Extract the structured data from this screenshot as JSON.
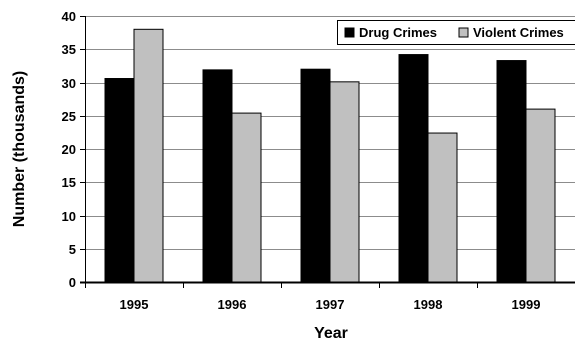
{
  "chart_data": {
    "type": "bar",
    "title": "",
    "xlabel": "Year",
    "ylabel": "Number (thousands)",
    "categories": [
      "1995",
      "1996",
      "1997",
      "1998",
      "1999"
    ],
    "ylim": [
      0,
      40
    ],
    "yticks": [
      0,
      5,
      10,
      15,
      20,
      25,
      30,
      35,
      40
    ],
    "grid": true,
    "legend_position": "top-right",
    "series": [
      {
        "name": "Drug Crimes",
        "color": "#000000",
        "values": [
          30.6,
          31.9,
          32.0,
          34.2,
          33.3
        ]
      },
      {
        "name": "Violent Crimes",
        "color": "#c0c0c0",
        "values": [
          38.0,
          25.4,
          30.1,
          22.4,
          26.0
        ]
      }
    ]
  }
}
